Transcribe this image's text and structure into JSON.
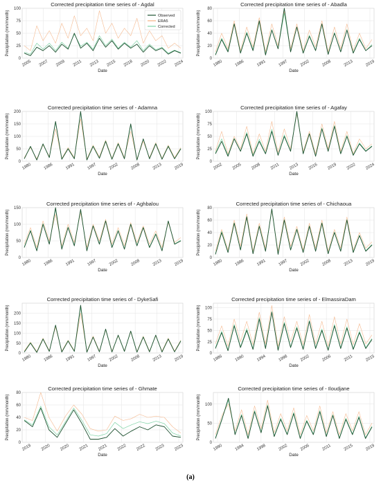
{
  "caption": "(a)",
  "colors": {
    "observed": "#1b4f2e",
    "era5": "#f4b183",
    "corrected": "#7fd3a6",
    "grid": "#e3e3e3",
    "axis": "#555555"
  },
  "chart_data": [
    {
      "type": "line",
      "title": "Corrected precipitation time series of - Agdal",
      "xlabel": "Date",
      "ylabel": "Precipitation (mm/month)",
      "x_ticks": [
        "2005",
        "2007",
        "2009",
        "2011",
        "2013",
        "2015",
        "2018",
        "2020",
        "2022",
        "2024"
      ],
      "y_ticks": [
        0,
        25,
        50,
        75,
        100
      ],
      "ylim": [
        0,
        100
      ],
      "legend": {
        "position": "top-right",
        "entries": [
          "Observed",
          "ERA5",
          "Corrected"
        ]
      },
      "series": [
        {
          "name": "Observed",
          "values": [
            10,
            5,
            22,
            15,
            25,
            12,
            28,
            18,
            50,
            20,
            30,
            15,
            40,
            22,
            35,
            18,
            30,
            20,
            28,
            12,
            25,
            15,
            20,
            8,
            15,
            10
          ]
        },
        {
          "name": "ERA5",
          "values": [
            25,
            15,
            65,
            35,
            55,
            30,
            70,
            40,
            85,
            45,
            60,
            35,
            95,
            50,
            70,
            40,
            60,
            45,
            80,
            30,
            55,
            35,
            45,
            20,
            30,
            20
          ]
        },
        {
          "name": "Corrected",
          "values": [
            12,
            8,
            30,
            18,
            30,
            15,
            32,
            20,
            48,
            24,
            32,
            18,
            45,
            25,
            38,
            20,
            32,
            22,
            35,
            15,
            28,
            17,
            22,
            10,
            16,
            11
          ]
        }
      ]
    },
    {
      "type": "line",
      "title": "Corrected precipitation time series of - Abadla",
      "xlabel": "Date",
      "ylabel": "Precipitation (mm/month)",
      "x_ticks": [
        "1980",
        "1986",
        "1991",
        "1997",
        "2002",
        "2008",
        "2013",
        "2019"
      ],
      "y_ticks": [
        0,
        20,
        40,
        60,
        80
      ],
      "ylim": [
        0,
        80
      ],
      "series": [
        {
          "name": "Observed",
          "values": [
            5,
            30,
            10,
            55,
            8,
            40,
            12,
            60,
            5,
            45,
            15,
            80,
            10,
            50,
            8,
            35,
            12,
            55,
            6,
            40,
            10,
            45,
            8,
            30,
            12,
            20
          ]
        },
        {
          "name": "ERA5",
          "values": [
            10,
            40,
            15,
            60,
            12,
            50,
            18,
            65,
            10,
            55,
            20,
            75,
            15,
            55,
            12,
            45,
            18,
            60,
            10,
            50,
            15,
            55,
            12,
            40,
            15,
            30
          ]
        },
        {
          "name": "Corrected",
          "values": [
            6,
            32,
            12,
            55,
            9,
            42,
            14,
            58,
            7,
            46,
            16,
            72,
            11,
            50,
            9,
            37,
            13,
            54,
            7,
            41,
            11,
            46,
            9,
            32,
            12,
            22
          ]
        }
      ]
    },
    {
      "type": "line",
      "title": "Corrected precipitation time series of - Adamna",
      "xlabel": "Date",
      "ylabel": "Precipitation (mm/month)",
      "x_ticks": [
        "1980",
        "1986",
        "1991",
        "1997",
        "2002",
        "2008",
        "2013",
        "2019"
      ],
      "y_ticks": [
        0,
        50,
        100,
        150,
        200
      ],
      "ylim": [
        0,
        200
      ],
      "series": [
        {
          "name": "Observed",
          "values": [
            10,
            60,
            5,
            70,
            15,
            160,
            8,
            50,
            10,
            200,
            5,
            60,
            12,
            80,
            8,
            70,
            10,
            150,
            5,
            90,
            10,
            70,
            8,
            60,
            10,
            50
          ]
        },
        {
          "name": "ERA5",
          "values": [
            15,
            55,
            10,
            65,
            20,
            130,
            12,
            55,
            15,
            170,
            10,
            65,
            18,
            85,
            12,
            75,
            15,
            120,
            10,
            80,
            15,
            75,
            12,
            65,
            15,
            55
          ]
        },
        {
          "name": "Corrected",
          "values": [
            11,
            58,
            6,
            68,
            16,
            155,
            9,
            52,
            11,
            195,
            6,
            62,
            13,
            82,
            9,
            72,
            11,
            145,
            6,
            88,
            11,
            72,
            9,
            62,
            11,
            52
          ]
        }
      ]
    },
    {
      "type": "line",
      "title": "Corrected precipitation time series of - Agafay",
      "xlabel": "Date",
      "ylabel": "Precipitation (mm/month)",
      "x_ticks": [
        "2002",
        "2005",
        "2008",
        "2011",
        "2013",
        "2016",
        "2019",
        "2022",
        "2024"
      ],
      "y_ticks": [
        0,
        25,
        50,
        75,
        100
      ],
      "ylim": [
        0,
        100
      ],
      "series": [
        {
          "name": "Observed",
          "values": [
            15,
            40,
            10,
            45,
            20,
            55,
            10,
            40,
            15,
            60,
            12,
            50,
            20,
            100,
            15,
            55,
            10,
            65,
            20,
            70,
            15,
            50,
            12,
            35,
            20,
            30
          ]
        },
        {
          "name": "ERA5",
          "values": [
            20,
            60,
            15,
            50,
            25,
            70,
            15,
            55,
            20,
            80,
            18,
            65,
            25,
            95,
            20,
            60,
            15,
            75,
            25,
            80,
            20,
            60,
            15,
            45,
            25,
            35
          ]
        },
        {
          "name": "Corrected",
          "values": [
            17,
            45,
            12,
            46,
            21,
            58,
            12,
            44,
            16,
            64,
            13,
            53,
            21,
            98,
            16,
            56,
            11,
            67,
            21,
            72,
            16,
            52,
            13,
            37,
            21,
            31
          ]
        }
      ]
    },
    {
      "type": "line",
      "title": "Corrected precipitation time series of - Aghbalou",
      "xlabel": "Date",
      "ylabel": "Precipitation (mm/month)",
      "x_ticks": [
        "1980",
        "1986",
        "1991",
        "1997",
        "2002",
        "2008",
        "2013",
        "2019"
      ],
      "y_ticks": [
        0,
        50,
        100,
        150
      ],
      "ylim": [
        0,
        150
      ],
      "series": [
        {
          "name": "Observed",
          "values": [
            30,
            80,
            20,
            100,
            40,
            150,
            25,
            90,
            35,
            145,
            20,
            95,
            40,
            110,
            30,
            80,
            25,
            100,
            35,
            90,
            30,
            70,
            20,
            110,
            40,
            50
          ]
        },
        {
          "name": "ERA5",
          "values": [
            40,
            90,
            30,
            110,
            50,
            130,
            35,
            100,
            45,
            135,
            30,
            100,
            50,
            115,
            40,
            90,
            35,
            105,
            45,
            95,
            40,
            80,
            30,
            105,
            45,
            60
          ]
        },
        {
          "name": "Corrected",
          "values": [
            32,
            82,
            22,
            102,
            42,
            145,
            27,
            92,
            37,
            142,
            22,
            96,
            42,
            111,
            32,
            82,
            27,
            101,
            37,
            91,
            32,
            72,
            22,
            109,
            41,
            52
          ]
        }
      ]
    },
    {
      "type": "line",
      "title": "Corrected precipitation time series of - Chichaoua",
      "xlabel": "Date",
      "ylabel": "Precipitation (mm/month)",
      "x_ticks": [
        "1980",
        "1986",
        "1991",
        "1997",
        "2002",
        "2008",
        "2013",
        "2019"
      ],
      "y_ticks": [
        0,
        20,
        40,
        60,
        80
      ],
      "ylim": [
        0,
        80
      ],
      "series": [
        {
          "name": "Observed",
          "values": [
            5,
            40,
            8,
            55,
            12,
            65,
            6,
            50,
            10,
            78,
            5,
            60,
            12,
            45,
            8,
            50,
            10,
            55,
            6,
            40,
            10,
            60,
            8,
            35,
            10,
            20
          ]
        },
        {
          "name": "ERA5",
          "values": [
            10,
            45,
            12,
            60,
            18,
            70,
            10,
            55,
            15,
            75,
            10,
            65,
            18,
            50,
            12,
            55,
            15,
            60,
            10,
            45,
            15,
            65,
            12,
            40,
            15,
            25
          ]
        },
        {
          "name": "Corrected",
          "values": [
            6,
            42,
            9,
            56,
            13,
            66,
            7,
            51,
            11,
            77,
            6,
            61,
            13,
            46,
            9,
            51,
            11,
            56,
            7,
            41,
            11,
            61,
            9,
            36,
            11,
            21
          ]
        }
      ]
    },
    {
      "type": "line",
      "title": "Corrected precipitation time series of - DykeSafi",
      "xlabel": "Date",
      "ylabel": "Precipitation (mm/month)",
      "x_ticks": [
        "1980",
        "1986",
        "1991",
        "1997",
        "2002",
        "2008",
        "2013",
        "2019"
      ],
      "y_ticks": [
        0,
        50,
        100,
        150,
        200
      ],
      "ylim": [
        0,
        250
      ],
      "series": [
        {
          "name": "Observed",
          "values": [
            5,
            50,
            3,
            70,
            8,
            140,
            5,
            60,
            8,
            240,
            4,
            80,
            6,
            120,
            5,
            90,
            8,
            110,
            4,
            80,
            6,
            90,
            5,
            70,
            6,
            60
          ]
        },
        {
          "name": "ERA5",
          "values": [
            10,
            55,
            8,
            75,
            12,
            130,
            10,
            65,
            12,
            200,
            8,
            85,
            10,
            115,
            10,
            85,
            12,
            105,
            8,
            85,
            10,
            85,
            10,
            75,
            10,
            65
          ]
        },
        {
          "name": "Corrected",
          "values": [
            6,
            52,
            4,
            72,
            9,
            138,
            6,
            62,
            9,
            230,
            5,
            81,
            7,
            118,
            6,
            88,
            9,
            108,
            5,
            82,
            7,
            88,
            6,
            72,
            7,
            62
          ]
        }
      ]
    },
    {
      "type": "line",
      "title": "Corrected precipitation time series of - ElmassiraDam",
      "xlabel": "Date",
      "ylabel": "Precipitation (mm/month)",
      "x_ticks": [
        "1986",
        "1990",
        "1994",
        "1998",
        "2002",
        "2006",
        "2011",
        "2015"
      ],
      "y_ticks": [
        0,
        25,
        50,
        75,
        100
      ],
      "ylim": [
        0,
        110
      ],
      "series": [
        {
          "name": "Observed",
          "values": [
            10,
            45,
            5,
            60,
            12,
            50,
            8,
            75,
            10,
            90,
            6,
            65,
            12,
            55,
            8,
            70,
            10,
            50,
            6,
            60,
            10,
            55,
            8,
            45,
            10,
            30
          ]
        },
        {
          "name": "ERA5",
          "values": [
            20,
            60,
            15,
            75,
            25,
            70,
            18,
            90,
            20,
            105,
            15,
            80,
            25,
            70,
            18,
            85,
            20,
            70,
            15,
            80,
            20,
            75,
            18,
            65,
            20,
            40
          ]
        },
        {
          "name": "Corrected",
          "values": [
            12,
            48,
            7,
            63,
            14,
            54,
            10,
            78,
            12,
            92,
            8,
            68,
            14,
            58,
            10,
            72,
            12,
            53,
            8,
            63,
            12,
            58,
            10,
            48,
            12,
            32
          ]
        }
      ]
    },
    {
      "type": "line",
      "title": "Corrected precipitation time series of - Ghmate",
      "xlabel": "Date",
      "ylabel": "Precipitation (mm/month)",
      "x_ticks": [
        "2019",
        "2020",
        "2020",
        "2021",
        "2021",
        "2022",
        "2022",
        "2023",
        "2023"
      ],
      "y_ticks": [
        0,
        20,
        40,
        60,
        80
      ],
      "ylim": [
        0,
        80
      ],
      "series": [
        {
          "name": "Observed",
          "values": [
            35,
            25,
            55,
            20,
            8,
            30,
            52,
            30,
            5,
            5,
            8,
            22,
            10,
            18,
            25,
            20,
            28,
            25,
            10,
            8
          ]
        },
        {
          "name": "ERA5",
          "values": [
            40,
            35,
            80,
            40,
            18,
            42,
            60,
            45,
            22,
            18,
            20,
            42,
            35,
            38,
            45,
            40,
            42,
            40,
            25,
            15
          ]
        },
        {
          "name": "Corrected",
          "values": [
            36,
            28,
            58,
            25,
            12,
            33,
            55,
            35,
            12,
            10,
            14,
            32,
            22,
            28,
            33,
            30,
            34,
            30,
            15,
            10
          ]
        }
      ]
    },
    {
      "type": "line",
      "title": "Corrected precipitation time series of - Iloudjane",
      "xlabel": "Date",
      "ylabel": "Precipitation (mm/month)",
      "x_ticks": [
        "1990",
        "1994",
        "1998",
        "2002",
        "2006",
        "2011",
        "2015",
        "2019"
      ],
      "y_ticks": [
        0,
        50,
        100
      ],
      "ylim": [
        0,
        130
      ],
      "series": [
        {
          "name": "Observed",
          "values": [
            10,
            60,
            115,
            20,
            70,
            10,
            80,
            25,
            95,
            15,
            60,
            20,
            75,
            10,
            55,
            20,
            80,
            15,
            70,
            10,
            60,
            20,
            65,
            10,
            40
          ]
        },
        {
          "name": "ERA5",
          "values": [
            20,
            70,
            100,
            30,
            85,
            20,
            95,
            35,
            110,
            25,
            75,
            30,
            90,
            20,
            70,
            30,
            95,
            25,
            80,
            20,
            75,
            30,
            80,
            20,
            50
          ]
        },
        {
          "name": "Corrected",
          "values": [
            12,
            62,
            110,
            22,
            73,
            12,
            83,
            27,
            98,
            17,
            63,
            22,
            78,
            12,
            58,
            22,
            83,
            17,
            72,
            12,
            63,
            22,
            68,
            12,
            42
          ]
        }
      ]
    }
  ]
}
